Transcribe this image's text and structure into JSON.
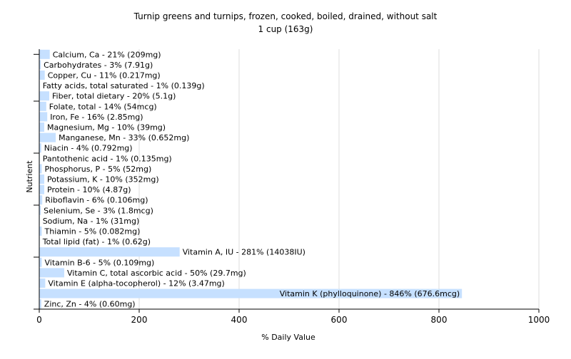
{
  "chart_data": {
    "type": "bar",
    "orientation": "horizontal",
    "title": "Turnip greens and turnips, frozen, cooked, boiled, drained, without salt",
    "subtitle": "1 cup (163g)",
    "xlabel": "% Daily Value",
    "ylabel": "Nutrient",
    "xlim": [
      0,
      1000
    ],
    "x_ticks": [
      "0",
      "200",
      "400",
      "600",
      "800",
      "1000"
    ],
    "grid": true,
    "bar_color": "#c6e0ff",
    "categories": [
      "Calcium, Ca",
      "Carbohydrates",
      "Copper, Cu",
      "Fatty acids, total saturated",
      "Fiber, total dietary",
      "Folate, total",
      "Iron, Fe",
      "Magnesium, Mg",
      "Manganese, Mn",
      "Niacin",
      "Pantothenic acid",
      "Phosphorus, P",
      "Potassium, K",
      "Protein",
      "Riboflavin",
      "Selenium, Se",
      "Sodium, Na",
      "Thiamin",
      "Total lipid (fat)",
      "Vitamin A, IU",
      "Vitamin B-6",
      "Vitamin C, total ascorbic acid",
      "Vitamin E (alpha-tocopherol)",
      "Vitamin K (phylloquinone)",
      "Zinc, Zn"
    ],
    "values": [
      21,
      3,
      11,
      1,
      20,
      14,
      16,
      10,
      33,
      4,
      1,
      5,
      10,
      10,
      6,
      3,
      1,
      5,
      1,
      281,
      5,
      50,
      12,
      846,
      4
    ],
    "labels": [
      "Calcium, Ca - 21% (209mg)",
      "Carbohydrates - 3% (7.91g)",
      "Copper, Cu - 11% (0.217mg)",
      "Fatty acids, total saturated - 1% (0.139g)",
      "Fiber, total dietary - 20% (5.1g)",
      "Folate, total - 14% (54mcg)",
      "Iron, Fe - 16% (2.85mg)",
      "Magnesium, Mg - 10% (39mg)",
      "Manganese, Mn - 33% (0.652mg)",
      "Niacin - 4% (0.792mg)",
      "Pantothenic acid - 1% (0.135mg)",
      "Phosphorus, P - 5% (52mg)",
      "Potassium, K - 10% (352mg)",
      "Protein - 10% (4.87g)",
      "Riboflavin - 6% (0.106mg)",
      "Selenium, Se - 3% (1.8mcg)",
      "Sodium, Na - 1% (31mg)",
      "Thiamin - 5% (0.082mg)",
      "Total lipid (fat) - 1% (0.62g)",
      "Vitamin A, IU - 281% (14038IU)",
      "Vitamin B-6 - 5% (0.109mg)",
      "Vitamin C, total ascorbic acid - 50% (29.7mg)",
      "Vitamin E (alpha-tocopherol) - 12% (3.47mg)",
      "Vitamin K (phylloquinone) - 846% (676.6mcg)",
      "Zinc, Zn - 4% (0.60mg)"
    ]
  }
}
